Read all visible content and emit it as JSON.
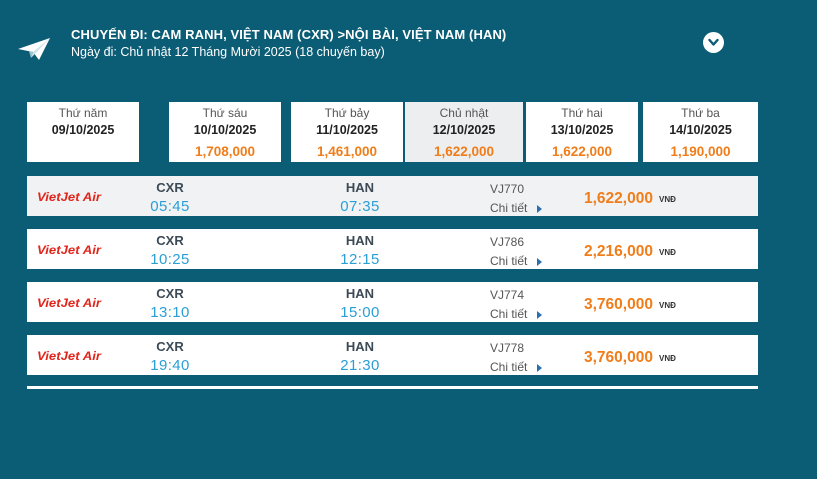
{
  "header": {
    "title": "CHUYẾN ĐI: CAM RANH, VIỆT NAM (CXR) >NỘI BÀI, VIỆT NAM (HAN)",
    "date_line": "Ngày đi: Chủ nhật 12 Tháng Mười 2025 (18 chuyến bay)",
    "icon": "paper-plane-icon",
    "toggle_icon": "chevron-down-icon"
  },
  "dates": [
    {
      "weekday": "Thứ năm",
      "date": "09/10/2025",
      "price": ""
    },
    {
      "weekday": "Thứ sáu",
      "date": "10/10/2025",
      "price": "1,708,000"
    },
    {
      "weekday": "Thứ bảy",
      "date": "11/10/2025",
      "price": "1,461,000"
    },
    {
      "weekday": "Chủ nhật",
      "date": "12/10/2025",
      "price": "1,622,000"
    },
    {
      "weekday": "Thứ hai",
      "date": "13/10/2025",
      "price": "1,622,000"
    },
    {
      "weekday": "Thứ ba",
      "date": "14/10/2025",
      "price": "1,190,000"
    }
  ],
  "flights": [
    {
      "airline": "VietJet Air",
      "from": "CXR",
      "dep": "05:45",
      "to": "HAN",
      "arr": "07:35",
      "flight_no": "VJ770",
      "detail": "Chi tiết",
      "price": "1,622,000",
      "currency": "VNĐ"
    },
    {
      "airline": "VietJet Air",
      "from": "CXR",
      "dep": "10:25",
      "to": "HAN",
      "arr": "12:15",
      "flight_no": "VJ786",
      "detail": "Chi tiết",
      "price": "2,216,000",
      "currency": "VNĐ"
    },
    {
      "airline": "VietJet Air",
      "from": "CXR",
      "dep": "13:10",
      "to": "HAN",
      "arr": "15:00",
      "flight_no": "VJ774",
      "detail": "Chi tiết",
      "price": "3,760,000",
      "currency": "VNĐ"
    },
    {
      "airline": "VietJet Air",
      "from": "CXR",
      "dep": "19:40",
      "to": "HAN",
      "arr": "21:30",
      "flight_no": "VJ778",
      "detail": "Chi tiết",
      "price": "3,760,000",
      "currency": "VNĐ"
    }
  ],
  "colors": {
    "background": "#0b5c75",
    "price": "#f07d1a",
    "time": "#2a9fd6",
    "brand_red": "#e1251b"
  }
}
